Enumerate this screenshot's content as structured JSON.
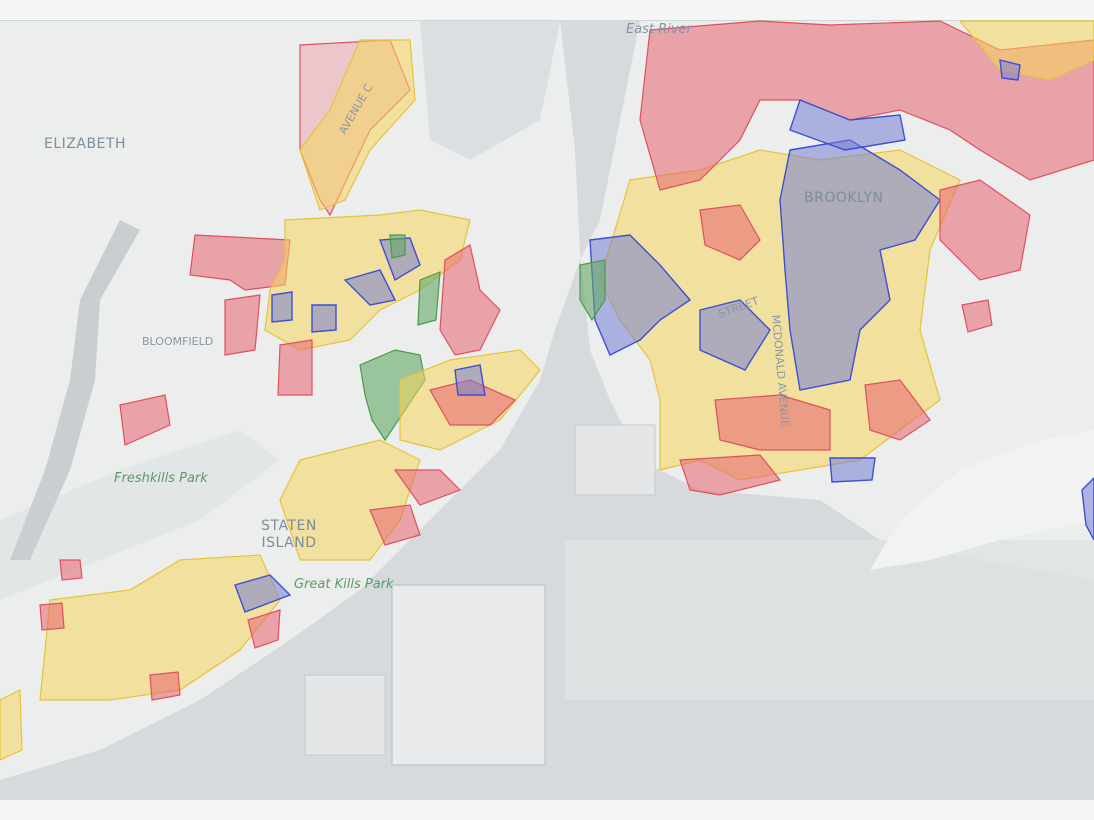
{
  "labels": {
    "elizabeth": "ELIZABETH",
    "bloomfield": "BLOOMFIELD",
    "freshkills": "Freshkills Park",
    "staten_island": [
      "STATEN",
      "ISLAND"
    ],
    "great_kills": "Great Kills Park",
    "brooklyn": "BROOKLYN",
    "east_river": "East River",
    "street": "STREET",
    "mcdonald": "MCDONALD AVENUE",
    "avenue_c": "AVENUE C"
  }
}
